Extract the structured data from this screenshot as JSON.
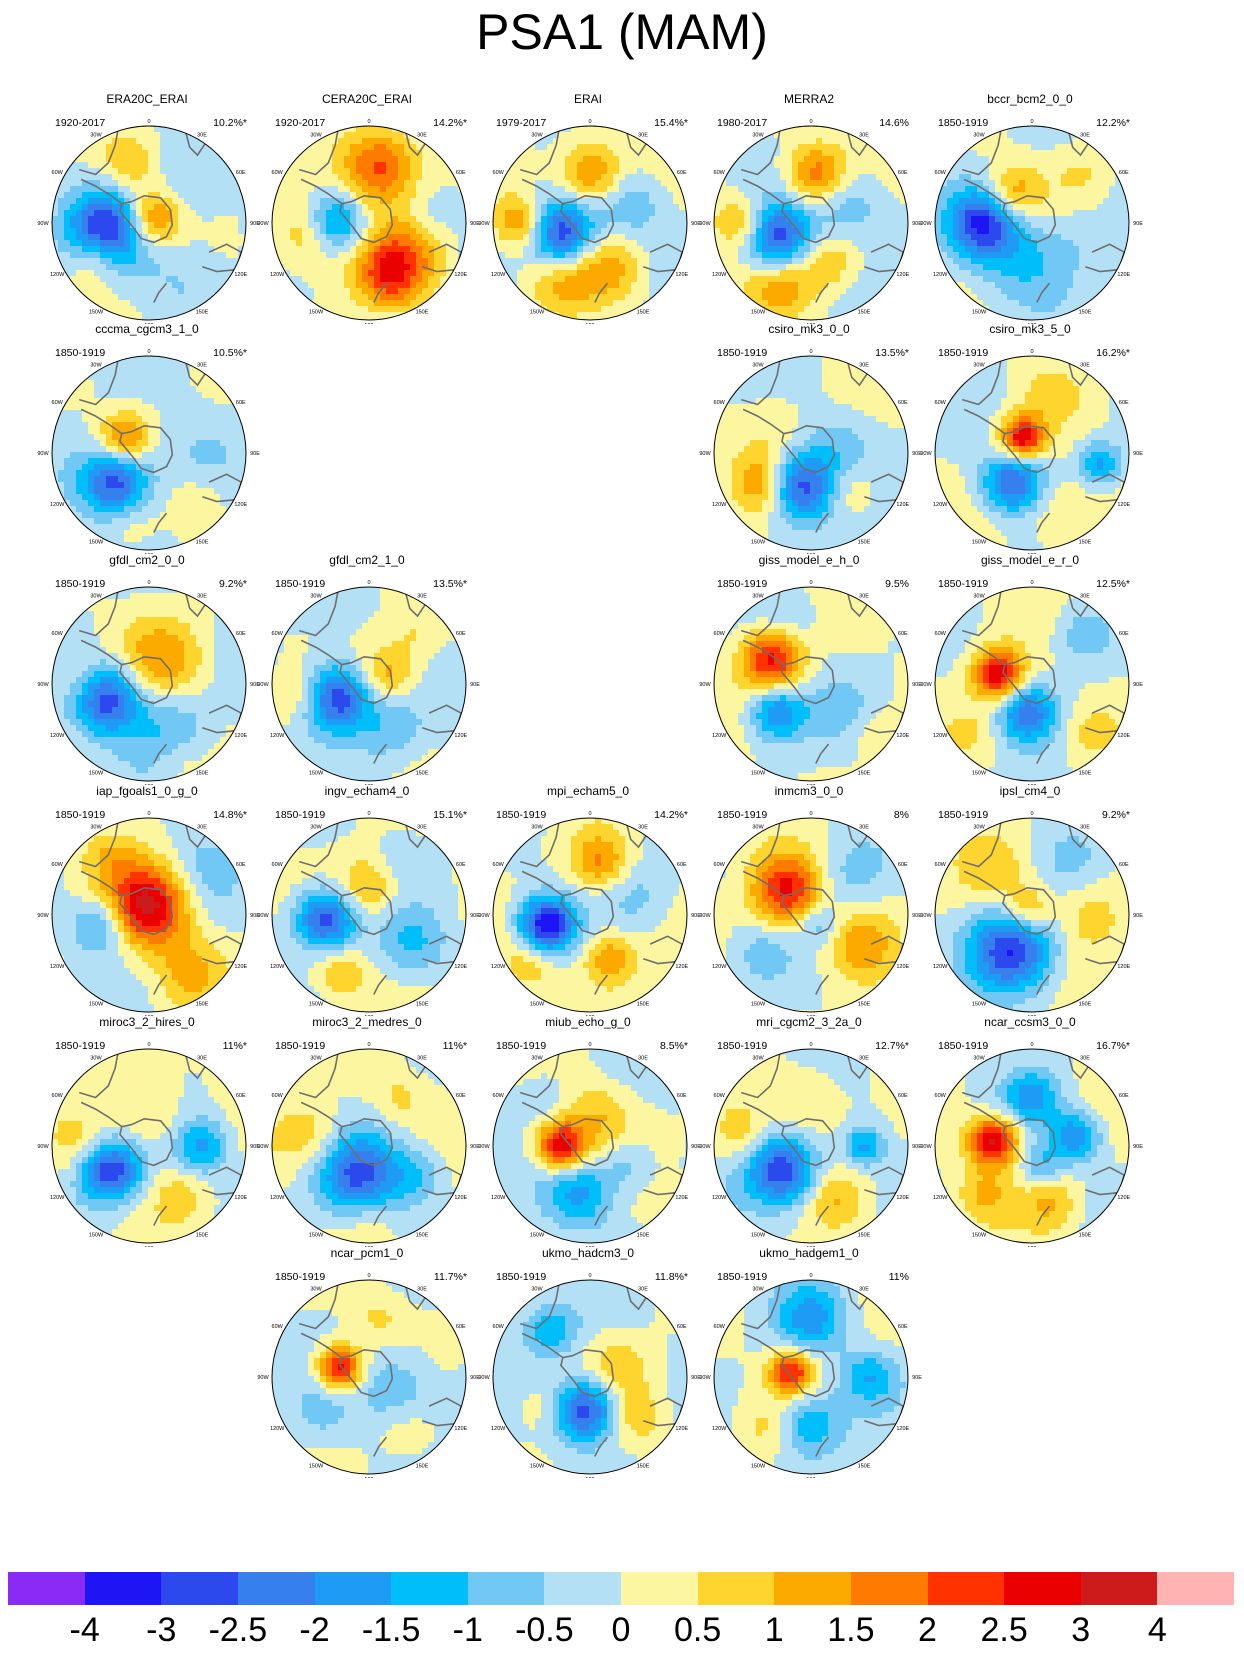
{
  "title": "PSA1 (MAM)",
  "projection_labels": {
    "lon_0": "0",
    "lon_30w": "30W",
    "lon_30e": "30E",
    "lon_60w": "60W",
    "lon_60e": "60E",
    "lon_90w": "90W",
    "lon_90e": "90E",
    "lon_120w": "120W",
    "lon_120e": "120E",
    "lon_150w": "150W",
    "lon_150e": "150E",
    "lon_180": "180"
  },
  "panels": [
    {
      "name": "ERA20C_ERAI",
      "period": "1920-2017",
      "variance": "10.2%*",
      "blobs": [
        [
          -0.45,
          0.1,
          0.28,
          -3.2
        ],
        [
          0.05,
          -0.05,
          0.2,
          2.0
        ],
        [
          -0.55,
          0.35,
          0.2,
          1.5
        ],
        [
          0.4,
          -0.3,
          0.3,
          -0.6
        ],
        [
          -0.2,
          -0.6,
          0.2,
          1.0
        ],
        [
          0.3,
          0.5,
          0.3,
          -0.5
        ]
      ]
    },
    {
      "name": "CERA20C_ERAI",
      "period": "1920-2017",
      "variance": "14.2%*",
      "blobs": [
        [
          -0.35,
          0.0,
          0.22,
          -2.4
        ],
        [
          0.1,
          -0.6,
          0.28,
          2.3
        ],
        [
          -0.6,
          0.1,
          0.25,
          1.5
        ],
        [
          0.4,
          0.3,
          0.3,
          1.2
        ],
        [
          0.2,
          0.55,
          0.25,
          1.8
        ],
        [
          0.6,
          -0.1,
          0.2,
          -0.5
        ]
      ]
    },
    {
      "name": "ERAI",
      "period": "1979-2017",
      "variance": "15.4%*",
      "blobs": [
        [
          -0.3,
          0.1,
          0.25,
          -3.2
        ],
        [
          0.0,
          -0.5,
          0.25,
          1.8
        ],
        [
          -0.7,
          0.0,
          0.2,
          1.8
        ],
        [
          0.4,
          -0.2,
          0.25,
          -1.0
        ],
        [
          0.2,
          0.45,
          0.25,
          1.2
        ],
        [
          -0.3,
          0.6,
          0.25,
          1.0
        ]
      ]
    },
    {
      "name": "MERRA2",
      "period": "1980-2017",
      "variance": "14.6%",
      "blobs": [
        [
          -0.35,
          0.15,
          0.25,
          -3.0
        ],
        [
          0.05,
          -0.5,
          0.22,
          1.8
        ],
        [
          -0.7,
          0.0,
          0.2,
          1.6
        ],
        [
          0.4,
          -0.2,
          0.25,
          -1.1
        ],
        [
          -0.3,
          0.6,
          0.25,
          1.3
        ],
        [
          0.2,
          0.4,
          0.2,
          1.0
        ]
      ]
    },
    {
      "name": "bccr_bcm2_0_0",
      "period": "1850-1919",
      "variance": "12.2%*",
      "blobs": [
        [
          -0.5,
          0.0,
          0.25,
          -3.0
        ],
        [
          -0.2,
          -0.3,
          0.2,
          1.5
        ],
        [
          -0.1,
          0.4,
          0.3,
          -1.0
        ],
        [
          0.4,
          0.2,
          0.3,
          -0.5
        ],
        [
          0.5,
          -0.5,
          0.2,
          0.5
        ]
      ]
    },
    {
      "name": "cccma_cgcm3_1_0",
      "period": "1850-1919",
      "variance": "10.5%*",
      "blobs": [
        [
          -0.35,
          0.3,
          0.25,
          -3.0
        ],
        [
          -0.25,
          -0.15,
          0.18,
          1.8
        ],
        [
          0.4,
          0.0,
          0.3,
          -0.5
        ],
        [
          -0.2,
          0.7,
          0.2,
          0.5
        ],
        [
          0.5,
          0.5,
          0.2,
          0.5
        ]
      ]
    },
    {
      "name": "csiro_mk3_0_0",
      "period": "1850-1919",
      "variance": "13.5%*",
      "blobs": [
        [
          -0.1,
          0.35,
          0.25,
          -3.0
        ],
        [
          -0.5,
          0.3,
          0.22,
          1.5
        ],
        [
          0.3,
          -0.1,
          0.25,
          -0.7
        ],
        [
          0.4,
          0.4,
          0.2,
          0.8
        ],
        [
          -0.4,
          -0.3,
          0.25,
          0.5
        ]
      ]
    },
    {
      "name": "csiro_mk3_5_0",
      "period": "1850-1919",
      "variance": "16.2%*",
      "blobs": [
        [
          -0.1,
          -0.15,
          0.16,
          3.0
        ],
        [
          -0.2,
          0.3,
          0.22,
          -2.6
        ],
        [
          0.7,
          0.1,
          0.15,
          -1.6
        ],
        [
          0.2,
          -0.6,
          0.2,
          0.6
        ],
        [
          0.3,
          0.6,
          0.25,
          0.8
        ]
      ]
    },
    {
      "name": "gfdl_cm2_0_0",
      "period": "1850-1919",
      "variance": "9.2%*",
      "blobs": [
        [
          -0.45,
          0.15,
          0.25,
          -3.0
        ],
        [
          0.2,
          0.45,
          0.3,
          -1.0
        ],
        [
          0.15,
          -0.25,
          0.3,
          1.3
        ],
        [
          -0.7,
          0.0,
          0.2,
          0.8
        ],
        [
          0.3,
          0.8,
          0.2,
          0.5
        ]
      ]
    },
    {
      "name": "gfdl_cm2_1_0",
      "period": "1850-1919",
      "variance": "13.5%*",
      "blobs": [
        [
          -0.35,
          0.15,
          0.25,
          -3.2
        ],
        [
          0.2,
          -0.1,
          0.2,
          1.3
        ],
        [
          0.2,
          0.45,
          0.25,
          -0.8
        ],
        [
          -0.7,
          0.1,
          0.2,
          1.0
        ],
        [
          0.5,
          -0.5,
          0.2,
          0.5
        ]
      ]
    },
    {
      "name": "giss_model_e_h_0",
      "period": "1850-1919",
      "variance": "9.5%",
      "blobs": [
        [
          -0.4,
          -0.25,
          0.22,
          2.6
        ],
        [
          -0.35,
          0.3,
          0.2,
          -2.2
        ],
        [
          0.3,
          0.3,
          0.25,
          -0.6
        ],
        [
          -0.2,
          -0.7,
          0.2,
          -0.5
        ],
        [
          0.6,
          0.5,
          0.2,
          0.5
        ]
      ]
    },
    {
      "name": "giss_model_e_r_0",
      "period": "1850-1919",
      "variance": "12.5%*",
      "blobs": [
        [
          -0.35,
          -0.1,
          0.18,
          3.0
        ],
        [
          -0.05,
          0.3,
          0.2,
          -2.2
        ],
        [
          0.5,
          -0.5,
          0.2,
          -0.8
        ],
        [
          0.6,
          0.5,
          0.2,
          0.6
        ],
        [
          -0.6,
          0.5,
          0.2,
          0.5
        ]
      ]
    },
    {
      "name": "iap_fgoals1_0_g_0",
      "period": "1850-1919",
      "variance": "14.8%*",
      "blobs": [
        [
          0.0,
          -0.1,
          0.3,
          3.2
        ],
        [
          -0.5,
          0.1,
          0.2,
          -1.5
        ],
        [
          0.4,
          0.6,
          0.25,
          1.0
        ],
        [
          0.5,
          -0.4,
          0.3,
          -0.6
        ],
        [
          -0.4,
          -0.6,
          0.2,
          0.7
        ]
      ]
    },
    {
      "name": "ingv_echam4_0",
      "period": "1850-1919",
      "variance": "15.1%*",
      "blobs": [
        [
          -0.45,
          0.05,
          0.22,
          -3.0
        ],
        [
          0.0,
          -0.3,
          0.22,
          1.2
        ],
        [
          0.45,
          0.3,
          0.25,
          -1.0
        ],
        [
          -0.3,
          0.6,
          0.2,
          1.0
        ],
        [
          0.3,
          -0.6,
          0.2,
          -0.4
        ]
      ]
    },
    {
      "name": "mpi_echam5_0",
      "period": "1850-1919",
      "variance": "14.2%*",
      "blobs": [
        [
          -0.45,
          0.1,
          0.2,
          -3.6
        ],
        [
          0.1,
          -0.55,
          0.2,
          1.5
        ],
        [
          0.2,
          0.45,
          0.2,
          1.6
        ],
        [
          -0.6,
          0.5,
          0.2,
          0.8
        ],
        [
          0.5,
          -0.2,
          0.25,
          -0.6
        ]
      ]
    },
    {
      "name": "inmcm3_0_0",
      "period": "1850-1919",
      "variance": "8%",
      "blobs": [
        [
          -0.25,
          -0.25,
          0.25,
          2.6
        ],
        [
          0.1,
          0.1,
          0.15,
          -1.0
        ],
        [
          0.5,
          0.3,
          0.25,
          1.2
        ],
        [
          0.4,
          -0.4,
          0.25,
          -0.6
        ],
        [
          -0.5,
          0.4,
          0.2,
          -0.6
        ]
      ]
    },
    {
      "name": "ipsl_cm4_0",
      "period": "1850-1919",
      "variance": "9.2%*",
      "blobs": [
        [
          -0.2,
          0.35,
          0.3,
          -3.0
        ],
        [
          -0.05,
          -0.05,
          0.18,
          1.5
        ],
        [
          0.6,
          0.0,
          0.25,
          0.8
        ],
        [
          -0.4,
          -0.5,
          0.25,
          0.7
        ],
        [
          0.4,
          -0.6,
          0.2,
          -0.4
        ]
      ]
    },
    {
      "name": "miroc3_2_hires_0",
      "period": "1850-1919",
      "variance": "11%*",
      "blobs": [
        [
          -0.4,
          0.25,
          0.22,
          -3.0
        ],
        [
          0.55,
          0.0,
          0.2,
          -1.6
        ],
        [
          0.0,
          -0.3,
          0.25,
          0.8
        ],
        [
          -0.7,
          0.0,
          0.2,
          0.6
        ],
        [
          0.3,
          0.5,
          0.2,
          0.7
        ]
      ]
    },
    {
      "name": "miroc3_2_medres_0",
      "period": "1850-1919",
      "variance": "11%*",
      "blobs": [
        [
          -0.1,
          0.3,
          0.3,
          -2.6
        ],
        [
          0.5,
          0.3,
          0.2,
          -1.0
        ],
        [
          -0.6,
          -0.1,
          0.25,
          1.0
        ],
        [
          0.3,
          -0.5,
          0.2,
          0.6
        ],
        [
          0.0,
          0.75,
          0.2,
          0.5
        ]
      ]
    },
    {
      "name": "miub_echo_g_0",
      "period": "1850-1919",
      "variance": "8.5%*",
      "blobs": [
        [
          -0.3,
          0.0,
          0.18,
          3.0
        ],
        [
          0.1,
          -0.3,
          0.25,
          1.0
        ],
        [
          -0.1,
          0.5,
          0.25,
          -1.6
        ],
        [
          0.4,
          0.2,
          0.2,
          -0.8
        ],
        [
          -0.5,
          -0.5,
          0.2,
          -0.6
        ]
      ]
    },
    {
      "name": "mri_cgcm2_3_2a_0",
      "period": "1850-1919",
      "variance": "12.7%*",
      "blobs": [
        [
          -0.3,
          0.25,
          0.25,
          -3.0
        ],
        [
          0.55,
          0.0,
          0.15,
          -1.6
        ],
        [
          0.0,
          -0.45,
          0.25,
          0.8
        ],
        [
          -0.7,
          -0.1,
          0.2,
          0.8
        ],
        [
          0.25,
          0.55,
          0.2,
          0.8
        ]
      ]
    },
    {
      "name": "ncar_ccsm3_0_0",
      "period": "1850-1919",
      "variance": "16.7%*",
      "blobs": [
        [
          -0.4,
          -0.05,
          0.18,
          3.2
        ],
        [
          0.1,
          0.2,
          0.15,
          -1.0
        ],
        [
          0.45,
          -0.1,
          0.18,
          -2.0
        ],
        [
          0.0,
          -0.5,
          0.2,
          -1.6
        ],
        [
          0.2,
          0.6,
          0.2,
          1.0
        ],
        [
          -0.5,
          0.5,
          0.2,
          1.0
        ]
      ]
    },
    {
      "name": "ncar_pcm1_0",
      "period": "1850-1919",
      "variance": "11.7%*",
      "blobs": [
        [
          -0.3,
          -0.1,
          0.16,
          3.0
        ],
        [
          0.3,
          0.1,
          0.3,
          -1.0
        ],
        [
          -0.5,
          0.4,
          0.25,
          -0.6
        ],
        [
          0.1,
          -0.6,
          0.2,
          0.6
        ],
        [
          0.4,
          0.6,
          0.2,
          0.6
        ]
      ]
    },
    {
      "name": "ukmo_hadcm3_0",
      "period": "1850-1919",
      "variance": "11.8%*",
      "blobs": [
        [
          -0.05,
          0.35,
          0.22,
          -3.0
        ],
        [
          -0.4,
          -0.5,
          0.2,
          -1.4
        ],
        [
          0.3,
          -0.1,
          0.2,
          0.8
        ],
        [
          0.5,
          0.4,
          0.2,
          0.8
        ],
        [
          -0.5,
          0.3,
          0.2,
          0.5
        ]
      ]
    },
    {
      "name": "ukmo_hadgem1_0",
      "period": "1850-1919",
      "variance": "11%",
      "blobs": [
        [
          -0.2,
          -0.05,
          0.16,
          2.6
        ],
        [
          0.0,
          0.5,
          0.25,
          -1.6
        ],
        [
          0.0,
          -0.6,
          0.25,
          -1.6
        ],
        [
          0.6,
          0.0,
          0.2,
          -1.4
        ],
        [
          -0.5,
          0.5,
          0.2,
          0.6
        ]
      ]
    }
  ],
  "colorbar": {
    "labels": [
      "-4",
      "-3",
      "-2.5",
      "-2",
      "-1.5",
      "-1",
      "-0.5",
      "0",
      "0.5",
      "1",
      "1.5",
      "2",
      "2.5",
      "3",
      "4"
    ],
    "levels": [
      -4,
      -3,
      -2.5,
      -2,
      -1.5,
      -1,
      -0.5,
      0,
      0.5,
      1,
      1.5,
      2,
      2.5,
      3,
      4
    ],
    "colors": [
      "#8a2bf5",
      "#1e15f4",
      "#2c49ee",
      "#3680ee",
      "#1e9bf5",
      "#00befa",
      "#72c8f4",
      "#b3e0f5",
      "#fdf6a0",
      "#fed42f",
      "#fdaa00",
      "#ff7b00",
      "#ff3200",
      "#eb0000",
      "#cd1b1b",
      "#ffb3b3"
    ]
  }
}
